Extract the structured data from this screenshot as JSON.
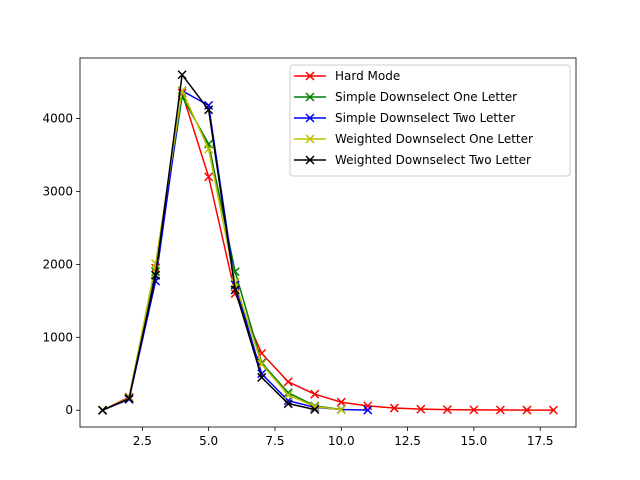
{
  "chart_data": {
    "type": "line",
    "title": "",
    "xlabel": "",
    "ylabel": "",
    "xlim": [
      0.15,
      18.85
    ],
    "ylim": [
      -230,
      4830
    ],
    "xticks": [
      2.5,
      5.0,
      7.5,
      10.0,
      12.5,
      15.0,
      17.5
    ],
    "xtick_labels": [
      "2.5",
      "5.0",
      "7.5",
      "10.0",
      "12.5",
      "15.0",
      "17.5"
    ],
    "yticks": [
      0,
      1000,
      2000,
      3000,
      4000
    ],
    "ytick_labels": [
      "0",
      "1000",
      "2000",
      "3000",
      "4000"
    ],
    "grid": false,
    "legend_position": "top-right",
    "marker": "x",
    "series": [
      {
        "name": "Hard Mode",
        "color": "#ff0000",
        "x": [
          1,
          2,
          3,
          4,
          5,
          6,
          7,
          8,
          9,
          10,
          11,
          12,
          13,
          14,
          15,
          16,
          17,
          18
        ],
        "y": [
          0,
          180,
          1950,
          4350,
          3200,
          1600,
          780,
          390,
          220,
          110,
          60,
          30,
          15,
          8,
          5,
          3,
          2,
          1
        ]
      },
      {
        "name": "Simple Downselect One Letter",
        "color": "#008000",
        "x": [
          1,
          2,
          3,
          4,
          5,
          6,
          7,
          8,
          9,
          10
        ],
        "y": [
          0,
          160,
          1900,
          4300,
          3650,
          1900,
          650,
          240,
          60,
          10
        ]
      },
      {
        "name": "Simple Downselect Two Letter",
        "color": "#0000ff",
        "x": [
          1,
          2,
          3,
          4,
          5,
          6,
          7,
          8,
          9,
          10,
          11
        ],
        "y": [
          0,
          150,
          1770,
          4380,
          4180,
          1720,
          500,
          130,
          40,
          10,
          2
        ]
      },
      {
        "name": "Weighted Downselect One Letter",
        "color": "#bfbf00",
        "x": [
          1,
          2,
          3,
          4,
          5,
          6,
          7,
          8,
          9,
          10
        ],
        "y": [
          0,
          170,
          2010,
          4380,
          3580,
          1750,
          630,
          210,
          50,
          8
        ]
      },
      {
        "name": "Weighted Downselect Two Letter",
        "color": "#000000",
        "x": [
          1,
          2,
          3,
          4,
          5,
          6,
          7,
          8,
          9
        ],
        "y": [
          0,
          160,
          1850,
          4600,
          4120,
          1650,
          450,
          90,
          10
        ]
      }
    ]
  }
}
